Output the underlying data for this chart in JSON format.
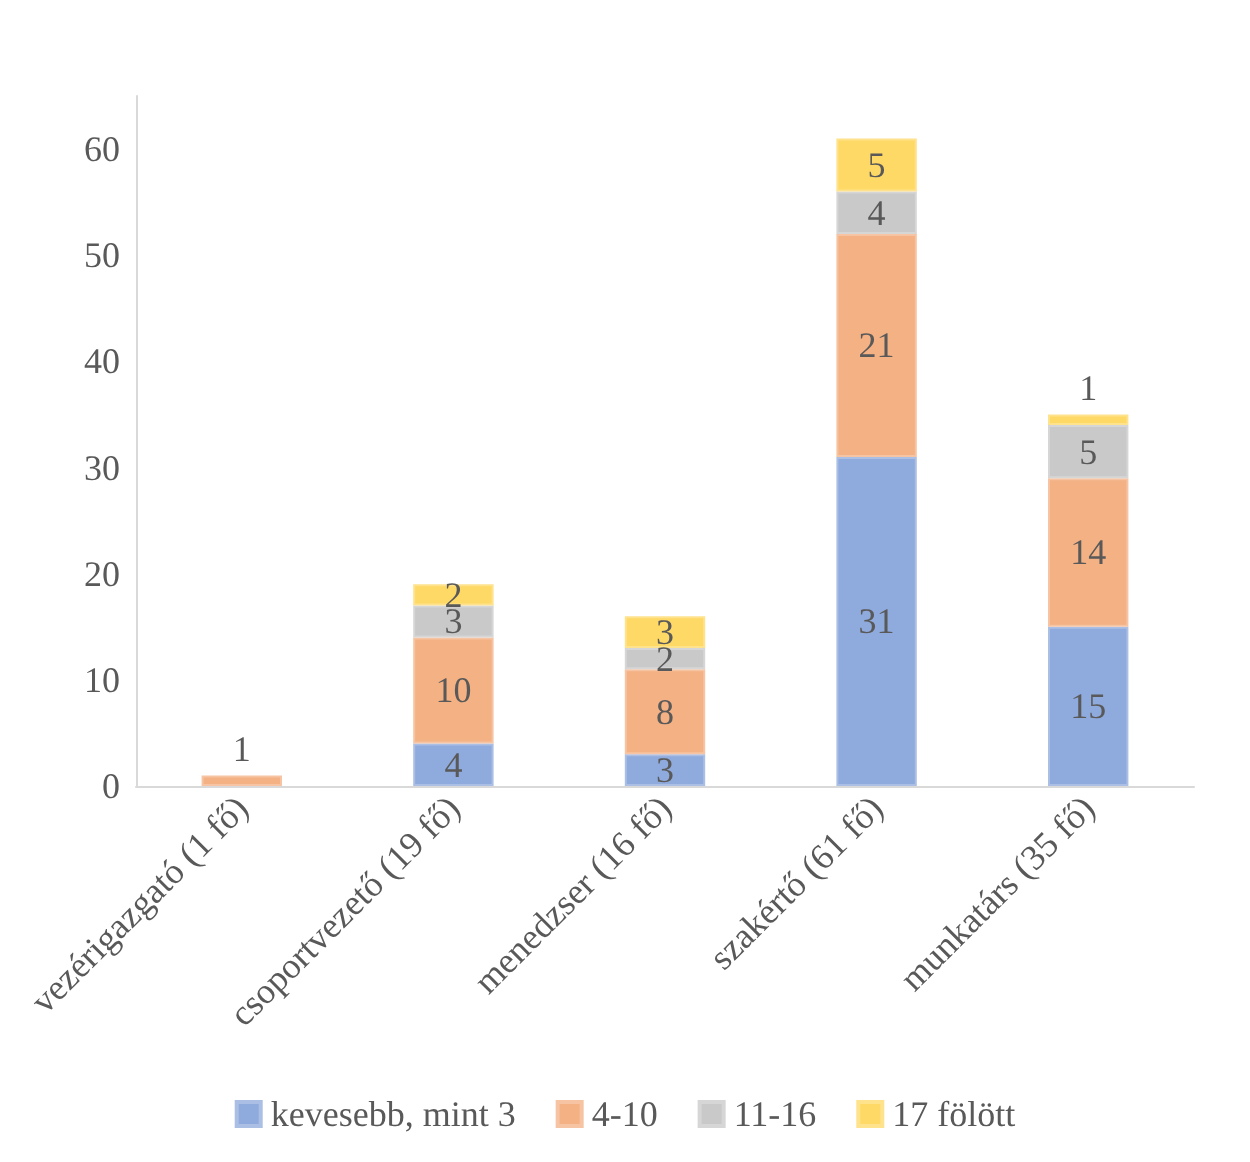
{
  "chart_data": {
    "type": "bar",
    "stacked": true,
    "categories": [
      "vezérigazgató (1 fő)",
      "csoportvezető (19 fő)",
      "menedzser (16 fő)",
      "szakértő (61 fő)",
      "munkatárs (35 fő)"
    ],
    "series": [
      {
        "name": "kevesebb, mint 3",
        "color": "#8faadc",
        "values": [
          null,
          4,
          3,
          31,
          15
        ]
      },
      {
        "name": "4-10",
        "color": "#f4b183",
        "values": [
          1,
          10,
          8,
          21,
          14
        ]
      },
      {
        "name": "11-16",
        "color": "#c9c9c9",
        "values": [
          null,
          3,
          2,
          4,
          5
        ]
      },
      {
        "name": "17 fölött",
        "color": "#ffd966",
        "values": [
          null,
          2,
          3,
          5,
          1
        ]
      }
    ],
    "ylim": [
      0,
      65
    ],
    "yticks": [
      0,
      10,
      20,
      30,
      40,
      50,
      60
    ],
    "grid": false,
    "legend": "bottom",
    "data_labels": true
  }
}
